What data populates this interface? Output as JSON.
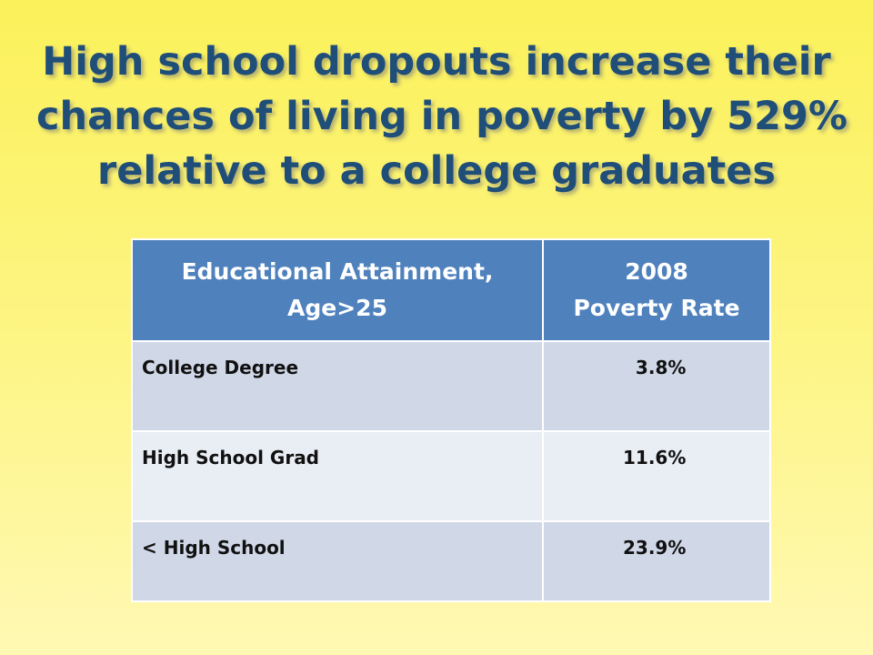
{
  "slide": {
    "title_lines": [
      "High school dropouts increase their",
      "chances of living in poverty by 529%",
      "relative to a college graduates"
    ]
  },
  "table": {
    "headers": {
      "col1_line1": "Educational Attainment,",
      "col1_line2": "Age>25",
      "col2_line1": "2008",
      "col2_line2": "Poverty Rate"
    },
    "rows": [
      {
        "education": "College Degree",
        "rate": "  3.8%"
      },
      {
        "education": "High School Grad",
        "rate": "11.6%"
      },
      {
        "education": "< High School",
        "rate": "23.9%"
      }
    ]
  },
  "colors": {
    "title": "#1f4e79",
    "header_bg": "#4f81bd",
    "row_odd": "#d0d8e8",
    "row_even": "#e9edf4",
    "background_top": "#fbf15a",
    "background_bottom": "#fff9b4"
  }
}
